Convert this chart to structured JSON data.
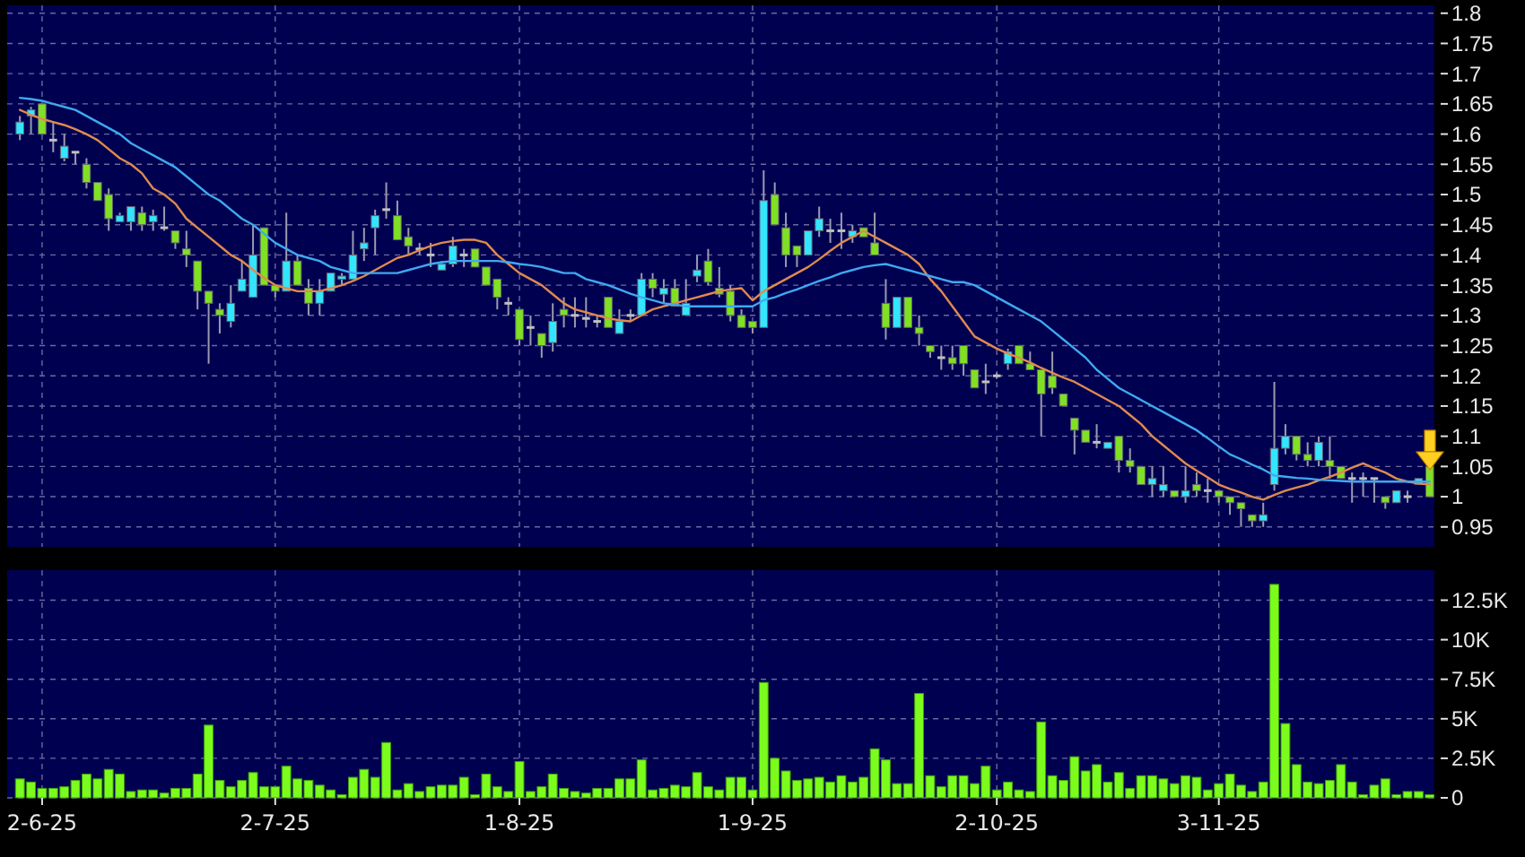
{
  "chart_data": [
    {
      "type": "candlestick",
      "tick_labels": "y",
      "grid": true,
      "categories": [
        null,
        null,
        null,
        null,
        null,
        null,
        null,
        null,
        null,
        null,
        null,
        null,
        null,
        null,
        null,
        null,
        null,
        null,
        null,
        null,
        null,
        null,
        null,
        null,
        null,
        null,
        null,
        null,
        null,
        null,
        null,
        null,
        null,
        null,
        null,
        null,
        null,
        null,
        null,
        null,
        null,
        null,
        null,
        null,
        null,
        null,
        null,
        null,
        null,
        null,
        null,
        null,
        null,
        null,
        null,
        null,
        null,
        null,
        null,
        null,
        null,
        null,
        null,
        null,
        null,
        null,
        null,
        null,
        null,
        null,
        null,
        null,
        null,
        null,
        null,
        null,
        null,
        null,
        null,
        null,
        null,
        null,
        null,
        null,
        null,
        null,
        null,
        null,
        null,
        null,
        null,
        null,
        null,
        null,
        null,
        null,
        null,
        null,
        null,
        null,
        null,
        null,
        null,
        null,
        null,
        null,
        null,
        null,
        null,
        null,
        null,
        null,
        null,
        null,
        null,
        null,
        null,
        null,
        null,
        null,
        null,
        null,
        null,
        null,
        null,
        null,
        null,
        null
      ],
      "ohlc": [
        [
          1.6,
          1.63,
          1.59,
          1.62
        ],
        [
          1.63,
          1.645,
          1.6,
          1.64
        ],
        [
          1.65,
          1.65,
          1.6,
          1.6
        ],
        [
          1.59,
          1.62,
          1.57,
          1.59
        ],
        [
          1.56,
          1.6,
          1.555,
          1.58
        ],
        [
          1.57,
          1.57,
          1.55,
          1.57
        ],
        [
          1.55,
          1.56,
          1.51,
          1.52
        ],
        [
          1.52,
          1.52,
          1.49,
          1.49
        ],
        [
          1.5,
          1.51,
          1.44,
          1.46
        ],
        [
          1.455,
          1.47,
          1.455,
          1.465
        ],
        [
          1.455,
          1.48,
          1.44,
          1.48
        ],
        [
          1.47,
          1.48,
          1.44,
          1.45
        ],
        [
          1.455,
          1.475,
          1.44,
          1.465
        ],
        [
          1.445,
          1.48,
          1.44,
          1.445
        ],
        [
          1.44,
          1.44,
          1.41,
          1.42
        ],
        [
          1.41,
          1.44,
          1.38,
          1.4
        ],
        [
          1.39,
          1.39,
          1.31,
          1.34
        ],
        [
          1.34,
          1.34,
          1.22,
          1.32
        ],
        [
          1.31,
          1.32,
          1.27,
          1.3
        ],
        [
          1.29,
          1.35,
          1.28,
          1.32
        ],
        [
          1.34,
          1.39,
          1.34,
          1.36
        ],
        [
          1.33,
          1.45,
          1.33,
          1.4
        ],
        [
          1.445,
          1.445,
          1.35,
          1.35
        ],
        [
          1.35,
          1.35,
          1.33,
          1.34
        ],
        [
          1.34,
          1.47,
          1.34,
          1.39
        ],
        [
          1.39,
          1.4,
          1.35,
          1.35
        ],
        [
          1.345,
          1.36,
          1.3,
          1.32
        ],
        [
          1.32,
          1.36,
          1.3,
          1.34
        ],
        [
          1.34,
          1.37,
          1.34,
          1.37
        ],
        [
          1.36,
          1.37,
          1.35,
          1.365
        ],
        [
          1.36,
          1.44,
          1.36,
          1.4
        ],
        [
          1.41,
          1.445,
          1.39,
          1.42
        ],
        [
          1.445,
          1.475,
          1.4,
          1.465
        ],
        [
          1.475,
          1.52,
          1.46,
          1.475
        ],
        [
          1.465,
          1.49,
          1.425,
          1.425
        ],
        [
          1.43,
          1.445,
          1.4,
          1.415
        ],
        [
          1.41,
          1.42,
          1.4,
          1.41
        ],
        [
          1.4,
          1.42,
          1.38,
          1.4
        ],
        [
          1.375,
          1.39,
          1.375,
          1.385
        ],
        [
          1.385,
          1.43,
          1.38,
          1.415
        ],
        [
          1.4,
          1.41,
          1.38,
          1.4
        ],
        [
          1.41,
          1.41,
          1.38,
          1.38
        ],
        [
          1.38,
          1.38,
          1.35,
          1.35
        ],
        [
          1.36,
          1.36,
          1.31,
          1.33
        ],
        [
          1.32,
          1.33,
          1.3,
          1.32
        ],
        [
          1.31,
          1.31,
          1.25,
          1.26
        ],
        [
          1.28,
          1.3,
          1.25,
          1.28
        ],
        [
          1.27,
          1.27,
          1.23,
          1.25
        ],
        [
          1.255,
          1.32,
          1.24,
          1.29
        ],
        [
          1.31,
          1.33,
          1.28,
          1.3
        ],
        [
          1.3,
          1.33,
          1.28,
          1.3
        ],
        [
          1.295,
          1.33,
          1.28,
          1.295
        ],
        [
          1.29,
          1.3,
          1.28,
          1.29
        ],
        [
          1.33,
          1.33,
          1.28,
          1.28
        ],
        [
          1.27,
          1.31,
          1.27,
          1.29
        ],
        [
          1.3,
          1.31,
          1.29,
          1.3
        ],
        [
          1.3,
          1.37,
          1.3,
          1.36
        ],
        [
          1.36,
          1.37,
          1.33,
          1.345
        ],
        [
          1.335,
          1.36,
          1.32,
          1.345
        ],
        [
          1.345,
          1.36,
          1.315,
          1.315
        ],
        [
          1.3,
          1.36,
          1.3,
          1.32
        ],
        [
          1.365,
          1.4,
          1.355,
          1.375
        ],
        [
          1.39,
          1.41,
          1.35,
          1.355
        ],
        [
          1.345,
          1.38,
          1.33,
          1.335
        ],
        [
          1.34,
          1.35,
          1.29,
          1.3
        ],
        [
          1.3,
          1.31,
          1.28,
          1.28
        ],
        [
          1.29,
          1.29,
          1.27,
          1.28
        ],
        [
          1.28,
          1.54,
          1.28,
          1.49
        ],
        [
          1.5,
          1.52,
          1.45,
          1.45
        ],
        [
          1.445,
          1.47,
          1.38,
          1.4
        ],
        [
          1.415,
          1.415,
          1.38,
          1.4
        ],
        [
          1.4,
          1.44,
          1.4,
          1.44
        ],
        [
          1.44,
          1.48,
          1.43,
          1.46
        ],
        [
          1.44,
          1.46,
          1.42,
          1.44
        ],
        [
          1.44,
          1.47,
          1.41,
          1.44
        ],
        [
          1.43,
          1.45,
          1.42,
          1.44
        ],
        [
          1.445,
          1.445,
          1.43,
          1.43
        ],
        [
          1.42,
          1.47,
          1.4,
          1.4
        ],
        [
          1.32,
          1.36,
          1.26,
          1.28
        ],
        [
          1.28,
          1.33,
          1.28,
          1.33
        ],
        [
          1.33,
          1.33,
          1.28,
          1.28
        ],
        [
          1.28,
          1.3,
          1.25,
          1.27
        ],
        [
          1.25,
          1.25,
          1.23,
          1.24
        ],
        [
          1.23,
          1.25,
          1.21,
          1.23
        ],
        [
          1.23,
          1.25,
          1.21,
          1.22
        ],
        [
          1.25,
          1.25,
          1.2,
          1.22
        ],
        [
          1.21,
          1.21,
          1.18,
          1.18
        ],
        [
          1.19,
          1.22,
          1.17,
          1.19
        ],
        [
          1.2,
          1.205,
          1.195,
          1.2
        ],
        [
          1.22,
          1.245,
          1.21,
          1.24
        ],
        [
          1.25,
          1.25,
          1.22,
          1.22
        ],
        [
          1.22,
          1.24,
          1.21,
          1.21
        ],
        [
          1.21,
          1.21,
          1.1,
          1.17
        ],
        [
          1.2,
          1.24,
          1.17,
          1.18
        ],
        [
          1.17,
          1.17,
          1.15,
          1.15
        ],
        [
          1.13,
          1.13,
          1.07,
          1.11
        ],
        [
          1.11,
          1.11,
          1.09,
          1.09
        ],
        [
          1.09,
          1.12,
          1.08,
          1.09
        ],
        [
          1.08,
          1.09,
          1.08,
          1.09
        ],
        [
          1.1,
          1.1,
          1.04,
          1.06
        ],
        [
          1.06,
          1.08,
          1.04,
          1.05
        ],
        [
          1.05,
          1.05,
          1.02,
          1.02
        ],
        [
          1.02,
          1.05,
          1.0,
          1.03
        ],
        [
          1.01,
          1.05,
          1.0,
          1.02
        ],
        [
          1.01,
          1.01,
          1.0,
          1.0
        ],
        [
          1.0,
          1.05,
          0.99,
          1.01
        ],
        [
          1.02,
          1.04,
          1.0,
          1.01
        ],
        [
          1.01,
          1.03,
          0.99,
          1.01
        ],
        [
          1.01,
          1.01,
          0.99,
          1.0
        ],
        [
          1.0,
          1.0,
          0.97,
          0.99
        ],
        [
          0.99,
          0.99,
          0.95,
          0.98
        ],
        [
          0.97,
          0.97,
          0.95,
          0.96
        ],
        [
          0.96,
          0.99,
          0.95,
          0.97
        ],
        [
          1.02,
          1.19,
          1.01,
          1.08
        ],
        [
          1.08,
          1.12,
          1.07,
          1.1
        ],
        [
          1.1,
          1.1,
          1.06,
          1.07
        ],
        [
          1.07,
          1.09,
          1.05,
          1.06
        ],
        [
          1.06,
          1.1,
          1.05,
          1.09
        ],
        [
          1.06,
          1.1,
          1.03,
          1.05
        ],
        [
          1.05,
          1.05,
          1.03,
          1.03
        ],
        [
          1.03,
          1.04,
          0.99,
          1.03
        ],
        [
          1.03,
          1.04,
          1.0,
          1.03
        ],
        [
          1.03,
          1.03,
          0.99,
          1.03
        ],
        [
          1.0,
          1.0,
          0.98,
          0.99
        ],
        [
          0.99,
          1.01,
          0.99,
          1.01
        ],
        [
          1.0,
          1.01,
          0.99,
          1.0
        ],
        [
          1.02,
          1.03,
          1.02,
          1.03
        ],
        [
          1.05,
          1.05,
          1.0,
          1.0
        ]
      ],
      "colors": [
        "#33e5ff",
        "#33e5ff",
        "#80e024",
        "#c0c0c0",
        "#33e5ff",
        "#c0c0c0",
        "#80e024",
        "#80e024",
        "#80e024",
        "#33e5ff",
        "#33e5ff",
        "#80e024",
        "#33e5ff",
        "#c0c0c0",
        "#80e024",
        "#80e024",
        "#80e024",
        "#80e024",
        "#80e024",
        "#33e5ff",
        "#33e5ff",
        "#33e5ff",
        "#80e024",
        "#80e024",
        "#33e5ff",
        "#80e024",
        "#80e024",
        "#33e5ff",
        "#33e5ff",
        "#33e5ff",
        "#33e5ff",
        "#33e5ff",
        "#33e5ff",
        "#c0c0c0",
        "#80e024",
        "#80e024",
        "#c0c0c0",
        "#c0c0c0",
        "#33e5ff",
        "#33e5ff",
        "#c0c0c0",
        "#80e024",
        "#80e024",
        "#80e024",
        "#c0c0c0",
        "#80e024",
        "#c0c0c0",
        "#80e024",
        "#33e5ff",
        "#80e024",
        "#c0c0c0",
        "#c0c0c0",
        "#c0c0c0",
        "#80e024",
        "#33e5ff",
        "#c0c0c0",
        "#33e5ff",
        "#80e024",
        "#33e5ff",
        "#80e024",
        "#33e5ff",
        "#33e5ff",
        "#80e024",
        "#80e024",
        "#80e024",
        "#80e024",
        "#80e024",
        "#33e5ff",
        "#80e024",
        "#80e024",
        "#80e024",
        "#33e5ff",
        "#33e5ff",
        "#c0c0c0",
        "#c0c0c0",
        "#33e5ff",
        "#80e024",
        "#80e024",
        "#80e024",
        "#33e5ff",
        "#80e024",
        "#80e024",
        "#80e024",
        "#c0c0c0",
        "#80e024",
        "#80e024",
        "#80e024",
        "#c0c0c0",
        "#c0c0c0",
        "#33e5ff",
        "#80e024",
        "#80e024",
        "#80e024",
        "#80e024",
        "#80e024",
        "#80e024",
        "#80e024",
        "#c0c0c0",
        "#33e5ff",
        "#80e024",
        "#80e024",
        "#80e024",
        "#33e5ff",
        "#33e5ff",
        "#80e024",
        "#33e5ff",
        "#80e024",
        "#c0c0c0",
        "#80e024",
        "#80e024",
        "#80e024",
        "#80e024",
        "#33e5ff",
        "#33e5ff",
        "#33e5ff",
        "#80e024",
        "#80e024",
        "#33e5ff",
        "#80e024",
        "#80e024",
        "#c0c0c0",
        "#c0c0c0",
        "#c0c0c0",
        "#80e024",
        "#33e5ff",
        "#c0c0c0",
        "#33e5ff",
        "#80e024"
      ],
      "series": [
        {
          "type": "line",
          "color": "#e08a50",
          "values": [
            1.64,
            1.632,
            1.625,
            1.62,
            1.615,
            1.608,
            1.6,
            1.59,
            1.575,
            1.56,
            1.55,
            1.535,
            1.51,
            1.5,
            1.485,
            1.46,
            1.445,
            1.43,
            1.415,
            1.4,
            1.39,
            1.375,
            1.362,
            1.35,
            1.345,
            1.34,
            1.34,
            1.34,
            1.345,
            1.35,
            1.357,
            1.365,
            1.375,
            1.385,
            1.395,
            1.4,
            1.408,
            1.415,
            1.42,
            1.423,
            1.425,
            1.425,
            1.42,
            1.4,
            1.385,
            1.37,
            1.36,
            1.35,
            1.335,
            1.32,
            1.31,
            1.305,
            1.3,
            1.295,
            1.292,
            1.29,
            1.3,
            1.31,
            1.315,
            1.32,
            1.325,
            1.33,
            1.335,
            1.34,
            1.343,
            1.345,
            1.325,
            1.34,
            1.35,
            1.36,
            1.37,
            1.38,
            1.393,
            1.407,
            1.42,
            1.43,
            1.44,
            1.43,
            1.42,
            1.41,
            1.4,
            1.385,
            1.36,
            1.34,
            1.315,
            1.29,
            1.265,
            1.255,
            1.245,
            1.237,
            1.23,
            1.222,
            1.213,
            1.205,
            1.197,
            1.19,
            1.18,
            1.17,
            1.16,
            1.15,
            1.135,
            1.12,
            1.1,
            1.085,
            1.07,
            1.055,
            1.043,
            1.032,
            1.02,
            1.013,
            1.007,
            1.0,
            0.995,
            1.003,
            1.01,
            1.015,
            1.02,
            1.027,
            1.033,
            1.04,
            1.048,
            1.055,
            1.047,
            1.04,
            1.03,
            1.025,
            1.022,
            1.02
          ]
        },
        {
          "type": "line",
          "color": "#40a8f0",
          "values": [
            1.66,
            1.658,
            1.655,
            1.65,
            1.645,
            1.64,
            1.63,
            1.62,
            1.61,
            1.6,
            1.585,
            1.575,
            1.565,
            1.555,
            1.545,
            1.53,
            1.515,
            1.5,
            1.49,
            1.475,
            1.46,
            1.45,
            1.435,
            1.42,
            1.41,
            1.4,
            1.395,
            1.39,
            1.38,
            1.375,
            1.37,
            1.37,
            1.37,
            1.37,
            1.37,
            1.375,
            1.38,
            1.385,
            1.388,
            1.39,
            1.39,
            1.39,
            1.39,
            1.39,
            1.388,
            1.385,
            1.383,
            1.38,
            1.375,
            1.37,
            1.37,
            1.36,
            1.355,
            1.35,
            1.343,
            1.336,
            1.33,
            1.325,
            1.32,
            1.318,
            1.315,
            1.315,
            1.315,
            1.315,
            1.315,
            1.315,
            1.315,
            1.325,
            1.33,
            1.337,
            1.343,
            1.35,
            1.357,
            1.363,
            1.37,
            1.375,
            1.38,
            1.383,
            1.385,
            1.38,
            1.375,
            1.37,
            1.365,
            1.36,
            1.355,
            1.355,
            1.35,
            1.34,
            1.33,
            1.32,
            1.31,
            1.3,
            1.29,
            1.275,
            1.26,
            1.245,
            1.23,
            1.21,
            1.195,
            1.18,
            1.17,
            1.16,
            1.15,
            1.14,
            1.13,
            1.12,
            1.11,
            1.097,
            1.083,
            1.07,
            1.062,
            1.053,
            1.045,
            1.035,
            1.033,
            1.031,
            1.03,
            1.028,
            1.027,
            1.026,
            1.025,
            1.025,
            1.025,
            1.025,
            1.025,
            1.025,
            1.025,
            1.025
          ]
        }
      ],
      "ylim": [
        0.917,
        1.813
      ],
      "yticks": [
        0.95,
        1,
        1.05,
        1.1,
        1.15,
        1.2,
        1.25,
        1.3,
        1.35,
        1.4,
        1.45,
        1.5,
        1.55,
        1.6,
        1.65,
        1.7,
        1.75,
        1.8
      ]
    },
    {
      "type": "bar",
      "grid": true,
      "color": "#7cfc1c",
      "categories": [
        null,
        null,
        "2-6-25",
        null,
        null,
        null,
        null,
        null,
        null,
        null,
        null,
        null,
        null,
        null,
        null,
        null,
        null,
        null,
        null,
        null,
        null,
        null,
        null,
        "2-7-25",
        null,
        null,
        null,
        null,
        null,
        null,
        null,
        null,
        null,
        null,
        null,
        null,
        null,
        null,
        null,
        null,
        null,
        null,
        null,
        null,
        null,
        "1-8-25",
        null,
        null,
        null,
        null,
        null,
        null,
        null,
        null,
        null,
        null,
        null,
        null,
        null,
        null,
        null,
        null,
        null,
        null,
        null,
        null,
        "1-9-25",
        null,
        null,
        null,
        null,
        null,
        null,
        null,
        null,
        null,
        null,
        null,
        null,
        null,
        null,
        null,
        null,
        null,
        null,
        null,
        null,
        null,
        "2-10-25",
        null,
        null,
        null,
        null,
        null,
        null,
        null,
        null,
        null,
        null,
        null,
        null,
        null,
        null,
        null,
        null,
        null,
        null,
        null,
        "3-11-25",
        null,
        null,
        null,
        null,
        null,
        null,
        null,
        null,
        null,
        null,
        null,
        null,
        null,
        null,
        null,
        null,
        null,
        null,
        null
      ],
      "values": [
        1200,
        1000,
        600,
        600,
        700,
        1100,
        1500,
        1200,
        1800,
        1500,
        400,
        500,
        500,
        300,
        600,
        600,
        1500,
        4600,
        1100,
        700,
        1100,
        1600,
        700,
        700,
        2000,
        1200,
        1100,
        800,
        500,
        200,
        1300,
        1800,
        1300,
        3500,
        500,
        900,
        400,
        700,
        800,
        800,
        1300,
        200,
        1500,
        700,
        400,
        2300,
        400,
        700,
        1500,
        600,
        400,
        300,
        600,
        600,
        1200,
        1200,
        2400,
        500,
        600,
        800,
        700,
        1600,
        700,
        500,
        1300,
        1300,
        500,
        7300,
        2500,
        1700,
        1100,
        1200,
        1300,
        1000,
        1400,
        1000,
        1300,
        3100,
        2400,
        900,
        900,
        6600,
        1400,
        700,
        1400,
        1400,
        900,
        2000,
        500,
        1000,
        500,
        400,
        4800,
        1400,
        1100,
        2600,
        1700,
        2100,
        1000,
        1600,
        600,
        1400,
        1400,
        1200,
        900,
        1400,
        1300,
        500,
        900,
        1500,
        800,
        400,
        1000,
        13500,
        4700,
        2100,
        1000,
        900,
        1100,
        2100,
        1000,
        200,
        800,
        1200,
        200,
        400,
        400,
        200
      ],
      "ylim": [
        0,
        14400
      ],
      "yticks": [
        0,
        {
          "value": 2500,
          "label": "2.5K"
        },
        {
          "value": 5000,
          "label": "5K"
        },
        {
          "value": 7500,
          "label": "7.5K"
        },
        {
          "value": 10000,
          "label": "10K"
        },
        {
          "value": 12500,
          "label": "12.5K"
        }
      ]
    }
  ]
}
